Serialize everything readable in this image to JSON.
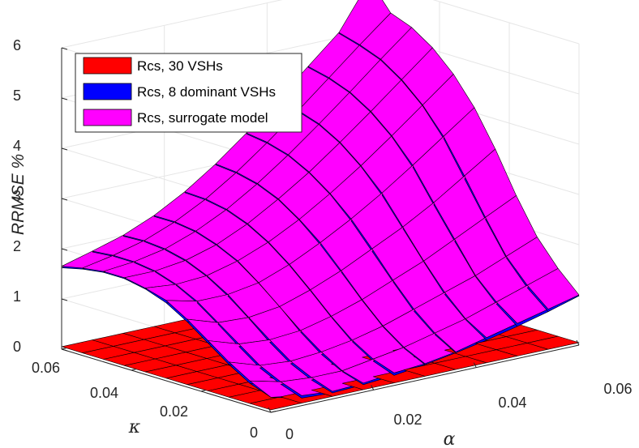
{
  "chart_data": {
    "type": "surface3d",
    "title": "",
    "xlabel": "α",
    "ylabel": "κ",
    "zlabel": "RRMSE %",
    "xlim": [
      0,
      0.06
    ],
    "ylim": [
      0,
      0.06
    ],
    "zlim": [
      0,
      6
    ],
    "xticks": [
      "0",
      "0.02",
      "0.04",
      "0.06"
    ],
    "yticks": [
      "0",
      "0.02",
      "0.04",
      "0.06"
    ],
    "zticks": [
      "0",
      "1",
      "2",
      "3",
      "4",
      "5",
      "6"
    ],
    "grid": true,
    "legend_position": "top-left",
    "grid_points": [
      0,
      0.006,
      0.012,
      0.018,
      0.024,
      0.03,
      0.036,
      0.042,
      0.048,
      0.054,
      0.06
    ],
    "series": [
      {
        "name": "Rcs, 30 VSHs",
        "color": "#ff0000",
        "values": [
          [
            0.05,
            0.05,
            0.05,
            0.05,
            0.05,
            0.05,
            0.05,
            0.05,
            0.05,
            0.05,
            0.05
          ],
          [
            0.05,
            0.05,
            0.05,
            0.05,
            0.05,
            0.05,
            0.05,
            0.05,
            0.05,
            0.05,
            0.05
          ],
          [
            0.05,
            0.05,
            0.05,
            0.05,
            0.05,
            0.05,
            0.05,
            0.05,
            0.05,
            0.05,
            0.05
          ],
          [
            0.05,
            0.05,
            0.05,
            0.05,
            0.05,
            0.05,
            0.05,
            0.05,
            0.05,
            0.05,
            0.05
          ],
          [
            0.05,
            0.05,
            0.05,
            0.05,
            0.05,
            0.05,
            0.05,
            0.05,
            0.05,
            0.05,
            0.05
          ],
          [
            0.05,
            0.05,
            0.05,
            0.05,
            0.05,
            0.05,
            0.05,
            0.05,
            0.05,
            0.05,
            0.05
          ],
          [
            0.05,
            0.05,
            0.05,
            0.05,
            0.05,
            0.05,
            0.05,
            0.05,
            0.05,
            0.05,
            0.05
          ],
          [
            0.05,
            0.05,
            0.05,
            0.05,
            0.05,
            0.05,
            0.05,
            0.05,
            0.05,
            0.05,
            0.05
          ],
          [
            0.05,
            0.05,
            0.05,
            0.05,
            0.05,
            0.05,
            0.05,
            0.05,
            0.05,
            0.05,
            0.05
          ],
          [
            0.05,
            0.05,
            0.05,
            0.05,
            0.05,
            0.05,
            0.05,
            0.05,
            0.05,
            0.05,
            0.05
          ],
          [
            0.05,
            0.05,
            0.05,
            0.05,
            0.05,
            0.05,
            0.05,
            0.05,
            0.05,
            0.05,
            0.05
          ]
        ]
      },
      {
        "name": "Rcs, 8 dominant VSHs",
        "color": "#0000ff",
        "values": [
          [
            0.3,
            0.15,
            0.12,
            0.15,
            0.2,
            0.28,
            0.38,
            0.5,
            0.64,
            0.8,
            0.98
          ],
          [
            0.45,
            0.3,
            0.25,
            0.28,
            0.36,
            0.48,
            0.62,
            0.78,
            0.96,
            1.15,
            1.36
          ],
          [
            0.7,
            0.5,
            0.45,
            0.5,
            0.62,
            0.78,
            0.96,
            1.16,
            1.38,
            1.62,
            1.88
          ],
          [
            1.0,
            0.8,
            0.75,
            0.82,
            0.98,
            1.18,
            1.42,
            1.68,
            1.96,
            2.26,
            2.58
          ],
          [
            1.3,
            1.12,
            1.1,
            1.2,
            1.38,
            1.62,
            1.9,
            2.22,
            2.56,
            2.94,
            3.34
          ],
          [
            1.55,
            1.42,
            1.42,
            1.54,
            1.76,
            2.04,
            2.38,
            2.76,
            3.18,
            3.62,
            4.08
          ],
          [
            1.7,
            1.64,
            1.68,
            1.84,
            2.08,
            2.4,
            2.78,
            3.2,
            3.66,
            4.14,
            4.62
          ],
          [
            1.78,
            1.78,
            1.86,
            2.04,
            2.32,
            2.68,
            3.08,
            3.54,
            4.02,
            4.52,
            5.02
          ],
          [
            1.78,
            1.84,
            1.96,
            2.18,
            2.48,
            2.86,
            3.3,
            3.78,
            4.28,
            4.8,
            5.3
          ],
          [
            1.72,
            1.84,
            2.0,
            2.24,
            2.56,
            2.96,
            3.42,
            3.92,
            4.44,
            4.96,
            5.46
          ],
          [
            1.62,
            1.8,
            1.98,
            2.24,
            2.58,
            3.0,
            3.48,
            4.0,
            4.54,
            5.08,
            5.6
          ]
        ]
      },
      {
        "name": "Rcs, surrogate model",
        "color": "#ff00ff",
        "values": [
          [
            0.3,
            0.2,
            0.15,
            0.18,
            0.25,
            0.3,
            0.4,
            0.55,
            0.7,
            0.85,
            1.0
          ],
          [
            0.5,
            0.35,
            0.3,
            0.3,
            0.4,
            0.5,
            0.65,
            0.8,
            1.0,
            1.2,
            1.4
          ],
          [
            0.75,
            0.55,
            0.5,
            0.55,
            0.65,
            0.8,
            1.0,
            1.2,
            1.4,
            1.65,
            1.9
          ],
          [
            1.05,
            0.85,
            0.8,
            0.85,
            1.0,
            1.2,
            1.45,
            1.7,
            2.0,
            2.3,
            2.6
          ],
          [
            1.35,
            1.15,
            1.12,
            1.2,
            1.4,
            1.65,
            1.95,
            2.25,
            2.6,
            3.0,
            3.4
          ],
          [
            1.6,
            1.45,
            1.45,
            1.55,
            1.78,
            2.08,
            2.42,
            2.8,
            3.22,
            3.66,
            4.1
          ],
          [
            1.72,
            1.66,
            1.7,
            1.86,
            2.1,
            2.42,
            2.8,
            3.22,
            3.68,
            4.16,
            4.64
          ],
          [
            1.8,
            1.8,
            1.88,
            2.06,
            2.34,
            2.7,
            3.1,
            3.56,
            4.04,
            4.54,
            5.04
          ],
          [
            1.8,
            1.86,
            1.98,
            2.2,
            2.5,
            2.88,
            3.32,
            3.8,
            4.3,
            4.82,
            5.32
          ],
          [
            1.74,
            1.86,
            2.02,
            2.26,
            2.58,
            2.98,
            3.44,
            3.94,
            4.46,
            4.98,
            5.48
          ],
          [
            1.65,
            1.82,
            2.0,
            2.26,
            2.6,
            3.02,
            3.5,
            4.02,
            4.56,
            5.1,
            6.0
          ]
        ]
      }
    ]
  }
}
